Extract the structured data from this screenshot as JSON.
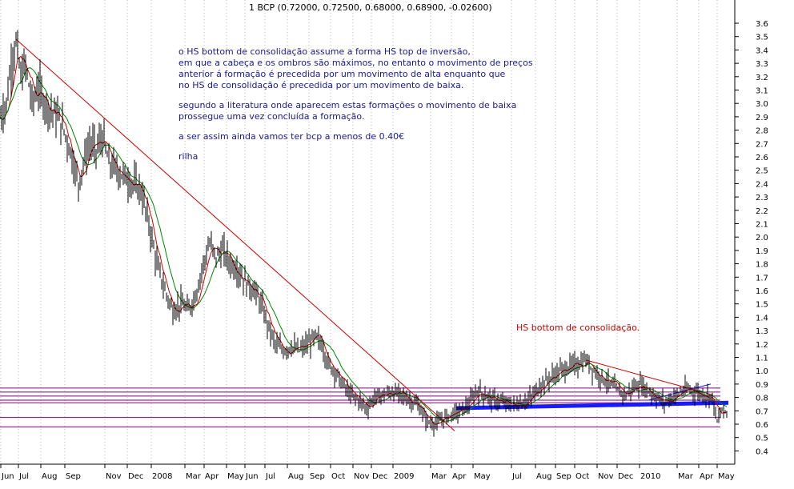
{
  "chart_data": {
    "type": "candlestick",
    "title": "1 BCP (0.72000, 0.72500, 0.68000, 0.68900, -0.02600)",
    "y_ticks": [
      "3.6",
      "3.5",
      "3.4",
      "3.3",
      "3.2",
      "3.1",
      "3.0",
      "2.9",
      "2.8",
      "2.7",
      "2.6",
      "2.5",
      "2.4",
      "2.3",
      "2.2",
      "2.1",
      "2.0",
      "1.9",
      "1.8",
      "1.7",
      "1.6",
      "1.5",
      "1.4",
      "1.3",
      "1.2",
      "1.1",
      "1.0",
      "0.9",
      "0.8",
      "0.7",
      "0.6",
      "0.5",
      "0.4"
    ],
    "ylim": [
      0.35,
      3.65
    ],
    "x_ticks": [
      "Jun",
      "Jul",
      "Aug",
      "Sep",
      "Nov",
      "Dec",
      "2008",
      "Mar",
      "Apr",
      "May",
      "Jun",
      "Jul",
      "Aug",
      "Sep",
      "Oct",
      "Nov",
      "Dec",
      "2009",
      "Mar",
      "Apr",
      "May",
      "Jul",
      "Aug",
      "Sep",
      "Oct",
      "Nov",
      "Dec",
      "2010",
      "Mar",
      "Apr",
      "May"
    ],
    "price_path": [
      [
        0,
        2.9
      ],
      [
        8,
        3.0
      ],
      [
        14,
        3.3
      ],
      [
        20,
        3.45
      ],
      [
        26,
        3.2
      ],
      [
        32,
        3.28
      ],
      [
        40,
        3.0
      ],
      [
        48,
        3.12
      ],
      [
        56,
        3.0
      ],
      [
        64,
        2.95
      ],
      [
        72,
        2.9
      ],
      [
        80,
        2.8
      ],
      [
        90,
        2.6
      ],
      [
        98,
        2.4
      ],
      [
        104,
        2.55
      ],
      [
        112,
        2.7
      ],
      [
        120,
        2.65
      ],
      [
        128,
        2.75
      ],
      [
        136,
        2.55
      ],
      [
        146,
        2.5
      ],
      [
        156,
        2.45
      ],
      [
        166,
        2.4
      ],
      [
        176,
        2.35
      ],
      [
        186,
        2.1
      ],
      [
        196,
        1.8
      ],
      [
        206,
        1.6
      ],
      [
        216,
        1.45
      ],
      [
        226,
        1.5
      ],
      [
        236,
        1.45
      ],
      [
        246,
        1.6
      ],
      [
        254,
        1.8
      ],
      [
        262,
        1.95
      ],
      [
        270,
        1.85
      ],
      [
        278,
        1.9
      ],
      [
        288,
        1.8
      ],
      [
        298,
        1.75
      ],
      [
        308,
        1.65
      ],
      [
        318,
        1.6
      ],
      [
        326,
        1.5
      ],
      [
        334,
        1.35
      ],
      [
        344,
        1.2
      ],
      [
        354,
        1.15
      ],
      [
        364,
        1.18
      ],
      [
        374,
        1.15
      ],
      [
        384,
        1.2
      ],
      [
        394,
        1.25
      ],
      [
        402,
        1.2
      ],
      [
        410,
        1.05
      ],
      [
        418,
        1.0
      ],
      [
        428,
        0.9
      ],
      [
        438,
        0.82
      ],
      [
        448,
        0.78
      ],
      [
        458,
        0.72
      ],
      [
        468,
        0.8
      ],
      [
        478,
        0.82
      ],
      [
        490,
        0.84
      ],
      [
        500,
        0.82
      ],
      [
        512,
        0.78
      ],
      [
        522,
        0.74
      ],
      [
        534,
        0.62
      ],
      [
        544,
        0.6
      ],
      [
        556,
        0.65
      ],
      [
        566,
        0.68
      ],
      [
        576,
        0.7
      ],
      [
        586,
        0.75
      ],
      [
        596,
        0.85
      ],
      [
        606,
        0.82
      ],
      [
        616,
        0.78
      ],
      [
        628,
        0.76
      ],
      [
        640,
        0.74
      ],
      [
        652,
        0.76
      ],
      [
        664,
        0.8
      ],
      [
        676,
        0.9
      ],
      [
        688,
        0.95
      ],
      [
        700,
        1.0
      ],
      [
        712,
        1.03
      ],
      [
        722,
        1.05
      ],
      [
        732,
        1.08
      ],
      [
        742,
        1.0
      ],
      [
        752,
        0.95
      ],
      [
        762,
        0.9
      ],
      [
        772,
        0.85
      ],
      [
        782,
        0.82
      ],
      [
        792,
        0.88
      ],
      [
        800,
        0.9
      ],
      [
        810,
        0.85
      ],
      [
        820,
        0.8
      ],
      [
        830,
        0.76
      ],
      [
        840,
        0.8
      ],
      [
        850,
        0.84
      ],
      [
        860,
        0.86
      ],
      [
        870,
        0.84
      ],
      [
        880,
        0.82
      ],
      [
        890,
        0.8
      ],
      [
        896,
        0.62
      ],
      [
        902,
        0.7
      ],
      [
        908,
        0.69
      ]
    ],
    "trendline_red_main": [
      [
        20,
        3.48
      ],
      [
        568,
        0.55
      ]
    ],
    "trendline_red_late": [
      [
        732,
        1.08
      ],
      [
        890,
        0.82
      ]
    ],
    "trendline_blue_thick": [
      [
        570,
        0.72
      ],
      [
        910,
        0.76
      ]
    ],
    "trendline_blue_thin": [
      [
        810,
        0.78
      ],
      [
        888,
        0.9
      ]
    ],
    "horizontal_levels": [
      0.87,
      0.84,
      0.81,
      0.78,
      0.76,
      0.65,
      0.58
    ],
    "annotations": {
      "note_lines": [
        "o HS bottom de consolidação assume a forma HS top de inversão,",
        "em que a cabeça e os ombros são máximos, no entanto o movimento de preços",
        "anterior á formação é precedida por um movimento de alta enquanto que",
        "no HS de consolidação é precedida por um movimento de baixa.",
        "",
        "segundo a literatura onde aparecem estas formações o movimento de baixa",
        "prossegue uma vez concluída a formação.",
        "",
        "a ser assim ainda vamos ter bcp a menos de 0.40€",
        "",
        "rilha"
      ],
      "hs_label": "HS bottom de consolidação."
    },
    "colors": {
      "price": "#000000",
      "ma_fast": "#cc0000",
      "ma_slow": "#008800",
      "trend_red": "#cc0000",
      "trend_blue": "#1a1aff",
      "levels": "#800080",
      "grid": "#888888",
      "note_text": "#1a1a8c"
    }
  }
}
